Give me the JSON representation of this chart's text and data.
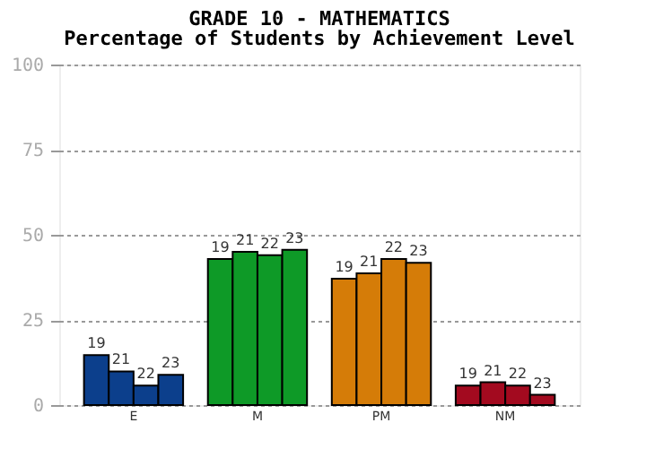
{
  "chart_data": {
    "type": "bar",
    "title": "GRADE 10 - MATHEMATICS",
    "subtitle": "Percentage of Students by Achievement Level",
    "categories": [
      "E",
      "M",
      "PM",
      "NM"
    ],
    "series": [
      {
        "name": "19",
        "colors": [
          "#0c3f8c",
          "#0e9a27",
          "#d57c08",
          "#a30a1f"
        ],
        "values": [
          14.7,
          42.9,
          37.1,
          5.7
        ]
      },
      {
        "name": "21",
        "colors": [
          "#0c3f8c",
          "#0e9a27",
          "#d57c08",
          "#a30a1f"
        ],
        "values": [
          9.9,
          45.0,
          38.7,
          6.7
        ]
      },
      {
        "name": "22",
        "colors": [
          "#0c3f8c",
          "#0e9a27",
          "#d57c08",
          "#a30a1f"
        ],
        "values": [
          5.7,
          44.0,
          42.9,
          5.7
        ]
      },
      {
        "name": "23",
        "colors": [
          "#0c3f8c",
          "#0e9a27",
          "#d57c08",
          "#a30a1f"
        ],
        "values": [
          8.9,
          45.6,
          41.8,
          3.0
        ]
      }
    ],
    "ylim": [
      0,
      100
    ],
    "yticks": [
      0,
      25,
      50,
      75,
      100
    ],
    "grid": "y",
    "legend": false
  }
}
